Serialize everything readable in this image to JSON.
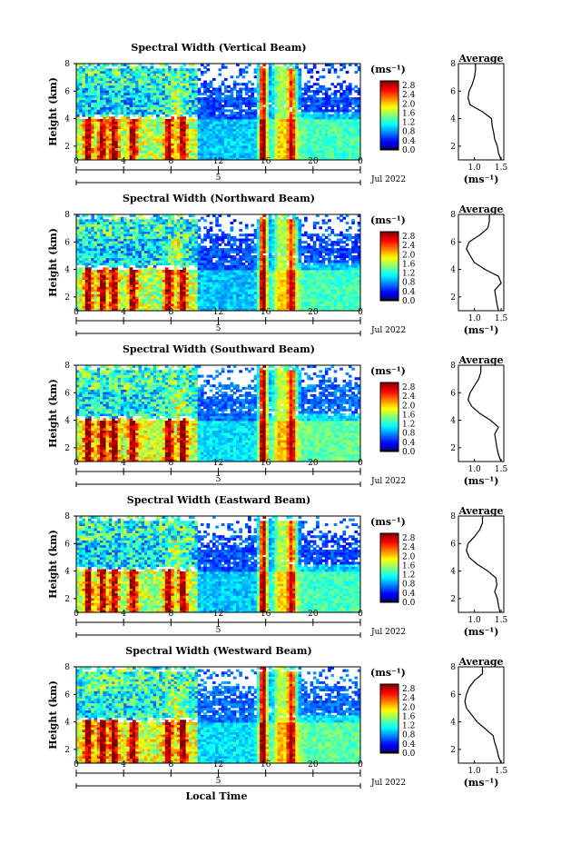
{
  "chart_data": [
    {
      "type": "heatmap",
      "title": "Spectral Width (Vertical Beam)",
      "ylabel": "Height (km)",
      "yticks": [
        "2",
        "4",
        "6",
        "8"
      ],
      "xticks": [
        "0",
        "4",
        "8",
        "12",
        "16",
        "20",
        "0"
      ],
      "date_tick": "5",
      "date_label": "Jul 2022",
      "ylim": [
        1,
        8
      ],
      "xlim": [
        0,
        24
      ],
      "colorbar": {
        "unit": "(ms⁻¹)",
        "ticks": [
          "0.0",
          "0.4",
          "0.8",
          "1.2",
          "1.6",
          "2.0",
          "2.4",
          "2.8"
        ],
        "range": [
          0,
          3.0
        ]
      },
      "average_profile": {
        "title": "Average",
        "xlabel": "(ms⁻¹)",
        "xticks": [
          "1.0",
          "1.5"
        ],
        "yticks": [
          "2",
          "4",
          "6",
          "8"
        ],
        "xlim": [
          0.7,
          1.55
        ],
        "ylim": [
          1,
          8
        ],
        "height": [
          1.0,
          1.5,
          2.0,
          2.5,
          3.0,
          3.5,
          4.0,
          4.5,
          5.0,
          5.5,
          6.0,
          6.5,
          7.0,
          7.5,
          8.0
        ],
        "width": [
          1.5,
          1.45,
          1.43,
          1.38,
          1.36,
          1.33,
          1.32,
          1.15,
          0.92,
          0.88,
          0.9,
          0.96,
          1.0,
          1.02,
          1.02
        ]
      }
    },
    {
      "type": "heatmap",
      "title": "Spectral Width (Northward Beam)",
      "ylabel": "Height (km)",
      "yticks": [
        "2",
        "4",
        "6",
        "8"
      ],
      "xticks": [
        "0",
        "4",
        "8",
        "12",
        "16",
        "20",
        "0"
      ],
      "date_tick": "5",
      "date_label": "Jul 2022",
      "ylim": [
        1,
        8
      ],
      "xlim": [
        0,
        24
      ],
      "colorbar": {
        "unit": "(ms⁻¹)",
        "ticks": [
          "0.0",
          "0.4",
          "0.8",
          "1.2",
          "1.6",
          "2.0",
          "2.4",
          "2.8"
        ],
        "range": [
          0,
          3.0
        ]
      },
      "average_profile": {
        "title": "Average",
        "xlabel": "(ms⁻¹)",
        "xticks": [
          "1.0",
          "1.5"
        ],
        "yticks": [
          "2",
          "4",
          "6",
          "8"
        ],
        "xlim": [
          0.7,
          1.55
        ],
        "ylim": [
          1,
          8
        ],
        "height": [
          1.0,
          1.5,
          2.0,
          2.5,
          3.0,
          3.5,
          4.0,
          4.5,
          5.0,
          5.5,
          6.0,
          6.5,
          7.0,
          7.5,
          8.0
        ],
        "width": [
          1.45,
          1.42,
          1.4,
          1.38,
          1.5,
          1.45,
          1.2,
          1.0,
          0.92,
          0.85,
          0.9,
          1.1,
          1.25,
          1.28,
          1.28
        ]
      }
    },
    {
      "type": "heatmap",
      "title": "Spectral Width (Southward Beam)",
      "ylabel": "Height (km)",
      "yticks": [
        "2",
        "4",
        "6",
        "8"
      ],
      "xticks": [
        "0",
        "4",
        "8",
        "12",
        "16",
        "20",
        "0"
      ],
      "date_tick": "5",
      "date_label": "Jul 2022",
      "ylim": [
        1,
        8
      ],
      "xlim": [
        0,
        24
      ],
      "colorbar": {
        "unit": "(ms⁻¹)",
        "ticks": [
          "0.0",
          "0.4",
          "0.8",
          "1.2",
          "1.6",
          "2.0",
          "2.4",
          "2.8"
        ],
        "range": [
          0,
          3.0
        ]
      },
      "average_profile": {
        "title": "Average",
        "xlabel": "(ms⁻¹)",
        "xticks": [
          "1.0",
          "1.5"
        ],
        "yticks": [
          "2",
          "4",
          "6",
          "8"
        ],
        "xlim": [
          0.7,
          1.55
        ],
        "ylim": [
          1,
          8
        ],
        "height": [
          1.0,
          1.5,
          2.0,
          2.5,
          3.0,
          3.5,
          4.0,
          4.5,
          5.0,
          5.5,
          6.0,
          6.5,
          7.0,
          7.5,
          8.0
        ],
        "width": [
          1.5,
          1.45,
          1.42,
          1.4,
          1.38,
          1.45,
          1.3,
          1.1,
          0.95,
          0.88,
          0.92,
          1.0,
          1.08,
          1.12,
          1.12
        ]
      }
    },
    {
      "type": "heatmap",
      "title": "Spectral Width (Eastward Beam)",
      "ylabel": "Height (km)",
      "yticks": [
        "2",
        "4",
        "6",
        "8"
      ],
      "xticks": [
        "0",
        "4",
        "8",
        "12",
        "16",
        "20",
        "0"
      ],
      "date_tick": "5",
      "date_label": "Jul 2022",
      "ylim": [
        1,
        8
      ],
      "xlim": [
        0,
        24
      ],
      "colorbar": {
        "unit": "(ms⁻¹)",
        "ticks": [
          "0.0",
          "0.4",
          "0.8",
          "1.2",
          "1.6",
          "2.0",
          "2.4",
          "2.8"
        ],
        "range": [
          0,
          3.0
        ]
      },
      "average_profile": {
        "title": "Average",
        "xlabel": "(ms⁻¹)",
        "xticks": [
          "1.0",
          "1.5"
        ],
        "yticks": [
          "2",
          "4",
          "6",
          "8"
        ],
        "xlim": [
          0.7,
          1.55
        ],
        "ylim": [
          1,
          8
        ],
        "height": [
          1.0,
          1.5,
          2.0,
          2.5,
          3.0,
          3.5,
          4.0,
          4.5,
          5.0,
          5.5,
          6.0,
          6.5,
          7.0,
          7.5,
          8.0
        ],
        "width": [
          1.48,
          1.45,
          1.43,
          1.38,
          1.42,
          1.4,
          1.25,
          1.05,
          0.9,
          0.85,
          0.88,
          1.0,
          1.1,
          1.15,
          1.15
        ]
      }
    },
    {
      "type": "heatmap",
      "title": "Spectral Width (Westward Beam)",
      "ylabel": "Height (km)",
      "yticks": [
        "2",
        "4",
        "6",
        "8"
      ],
      "xticks": [
        "0",
        "4",
        "8",
        "12",
        "16",
        "20",
        "0"
      ],
      "date_tick": "5",
      "date_label": "Jul 2022",
      "xlabel": "Local Time",
      "ylim": [
        1,
        8
      ],
      "xlim": [
        0,
        24
      ],
      "colorbar": {
        "unit": "(ms⁻¹)",
        "ticks": [
          "0.0",
          "0.4",
          "0.8",
          "1.2",
          "1.6",
          "2.0",
          "2.4",
          "2.8"
        ],
        "range": [
          0,
          3.0
        ]
      },
      "average_profile": {
        "title": "Average",
        "xlabel": "(ms⁻¹)",
        "xticks": [
          "1.0",
          "1.5"
        ],
        "yticks": [
          "2",
          "4",
          "6",
          "8"
        ],
        "xlim": [
          0.7,
          1.55
        ],
        "ylim": [
          1,
          8
        ],
        "height": [
          1.0,
          1.5,
          2.0,
          2.5,
          3.0,
          3.5,
          4.0,
          4.5,
          5.0,
          5.5,
          6.0,
          6.5,
          7.0,
          7.5,
          8.0
        ],
        "width": [
          1.5,
          1.45,
          1.42,
          1.38,
          1.35,
          1.2,
          1.05,
          0.95,
          0.85,
          0.82,
          0.85,
          0.9,
          1.0,
          1.15,
          1.15
        ]
      }
    }
  ]
}
